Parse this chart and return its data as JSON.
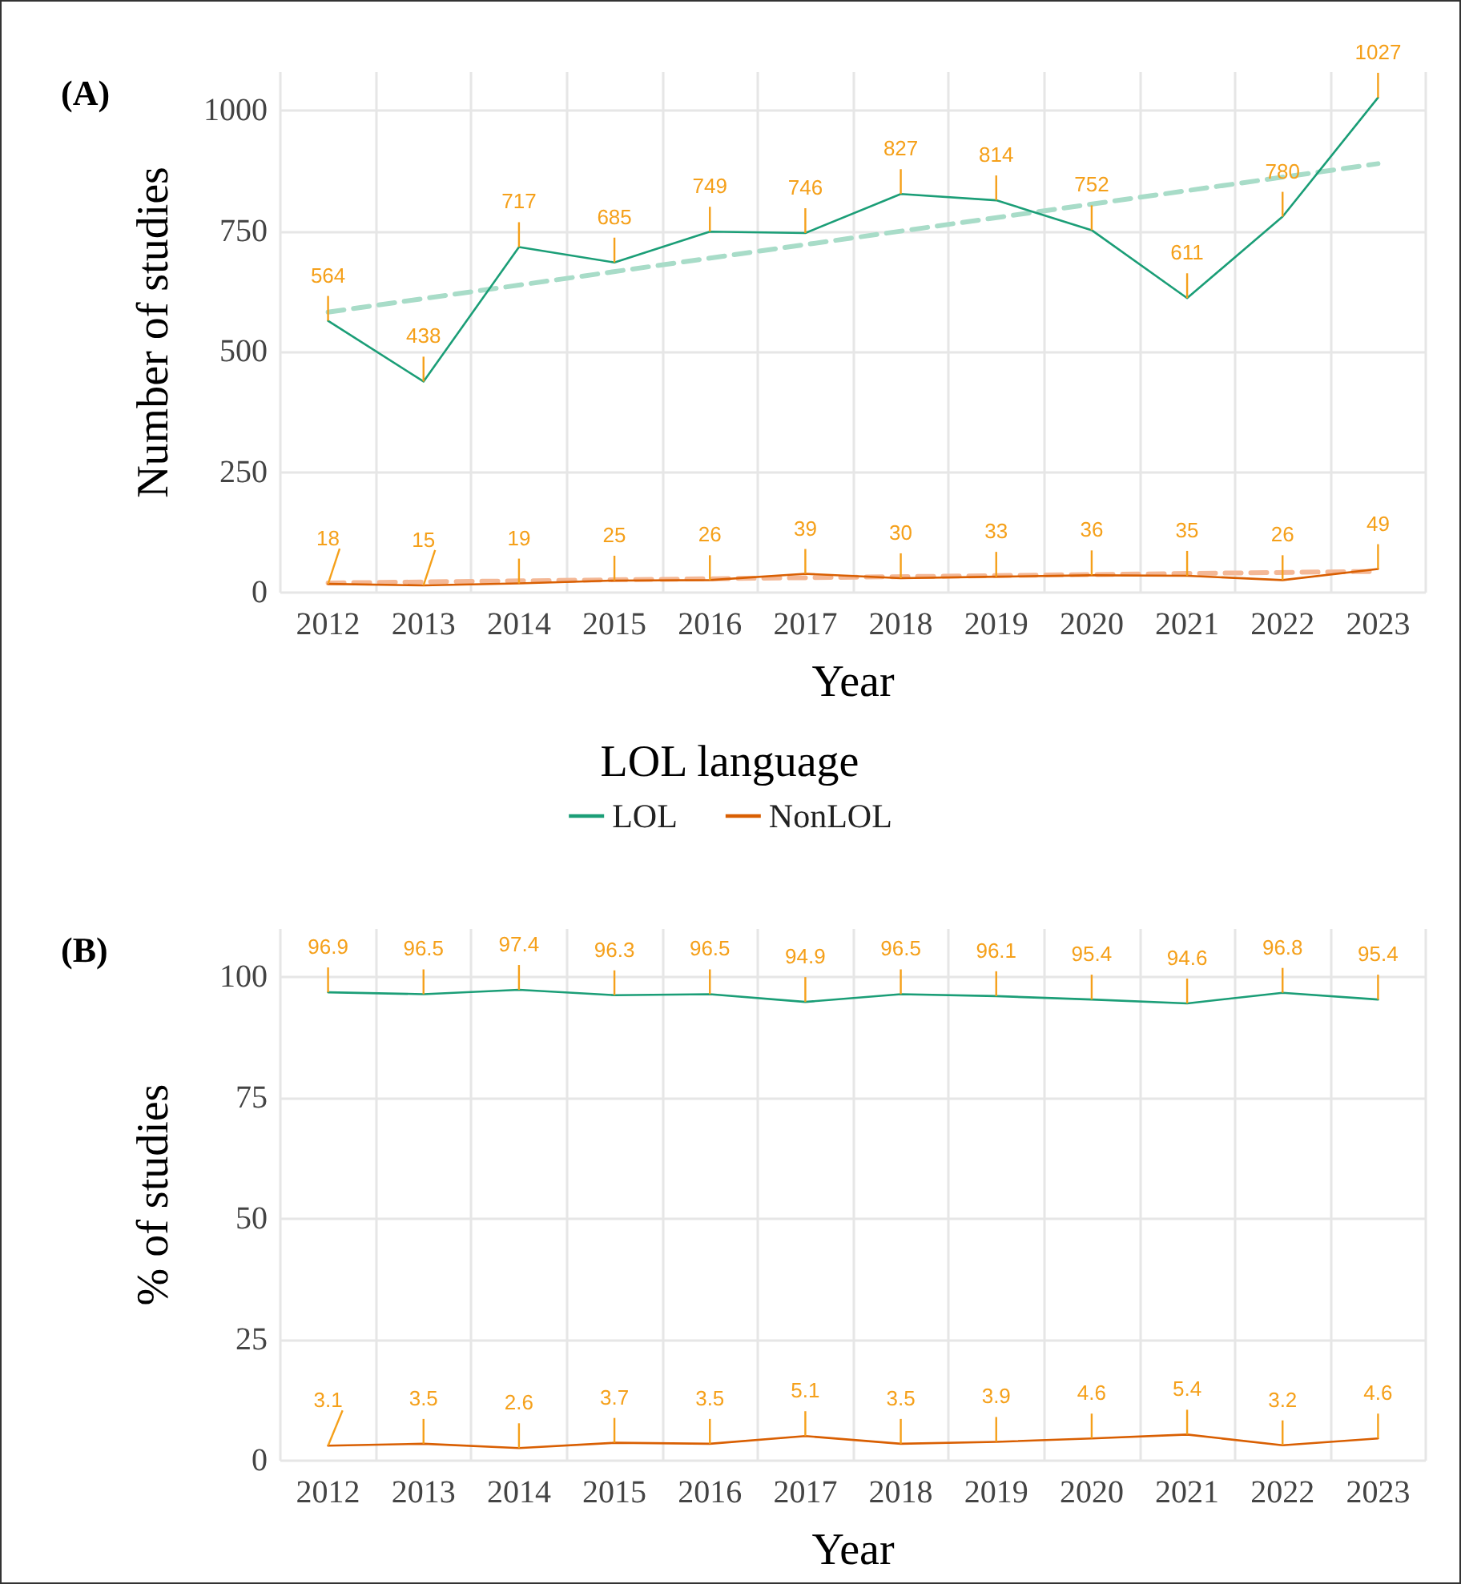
{
  "chart_data": [
    {
      "type": "line",
      "xlabel": "Year",
      "ylabel": "Number of studies",
      "legend_title": "LOL language",
      "legend": "bottom",
      "grid": true,
      "data_labels": true,
      "annotations": [
        "(A)"
      ],
      "categories": [
        "2012",
        "2013",
        "2014",
        "2015",
        "2016",
        "2017",
        "2018",
        "2019",
        "2020",
        "2021",
        "2022",
        "2023"
      ],
      "ylim": [
        0,
        1080
      ],
      "yticks": [
        0,
        250,
        500,
        750,
        1000
      ],
      "series": [
        {
          "name": "LOL",
          "color": "#1b9e77",
          "values": [
            564,
            438,
            717,
            685,
            749,
            746,
            827,
            814,
            752,
            611,
            780,
            1027
          ]
        },
        {
          "name": "NonLOL",
          "color": "#d95f02",
          "values": [
            18,
            15,
            19,
            25,
            26,
            39,
            30,
            33,
            36,
            35,
            26,
            49
          ]
        },
        {
          "color": "#a8dcc8",
          "line_style": "dashed",
          "data_labels": false,
          "values": [
            582,
            null,
            null,
            null,
            null,
            null,
            null,
            null,
            null,
            null,
            null,
            890
          ]
        },
        {
          "color": "#f4b896",
          "line_style": "dashed",
          "data_labels": false,
          "values": [
            20,
            null,
            null,
            null,
            null,
            null,
            null,
            null,
            null,
            null,
            null,
            44
          ]
        }
      ]
    },
    {
      "type": "line",
      "xlabel": "Year",
      "ylabel": "% of studies",
      "grid": true,
      "data_labels": true,
      "annotations": [
        "(B)"
      ],
      "categories": [
        "2012",
        "2013",
        "2014",
        "2015",
        "2016",
        "2017",
        "2018",
        "2019",
        "2020",
        "2021",
        "2022",
        "2023"
      ],
      "ylim": [
        0,
        110
      ],
      "yticks": [
        0,
        25,
        50,
        75,
        100
      ],
      "series": [
        {
          "color": "#1b9e77",
          "values": [
            96.9,
            96.5,
            97.4,
            96.3,
            96.5,
            94.9,
            96.5,
            96.1,
            95.4,
            94.6,
            96.8,
            95.4
          ]
        },
        {
          "color": "#d95f02",
          "values": [
            3.1,
            3.5,
            2.6,
            3.7,
            3.5,
            5.1,
            3.5,
            3.9,
            4.6,
            5.4,
            3.2,
            4.6
          ]
        }
      ]
    }
  ]
}
